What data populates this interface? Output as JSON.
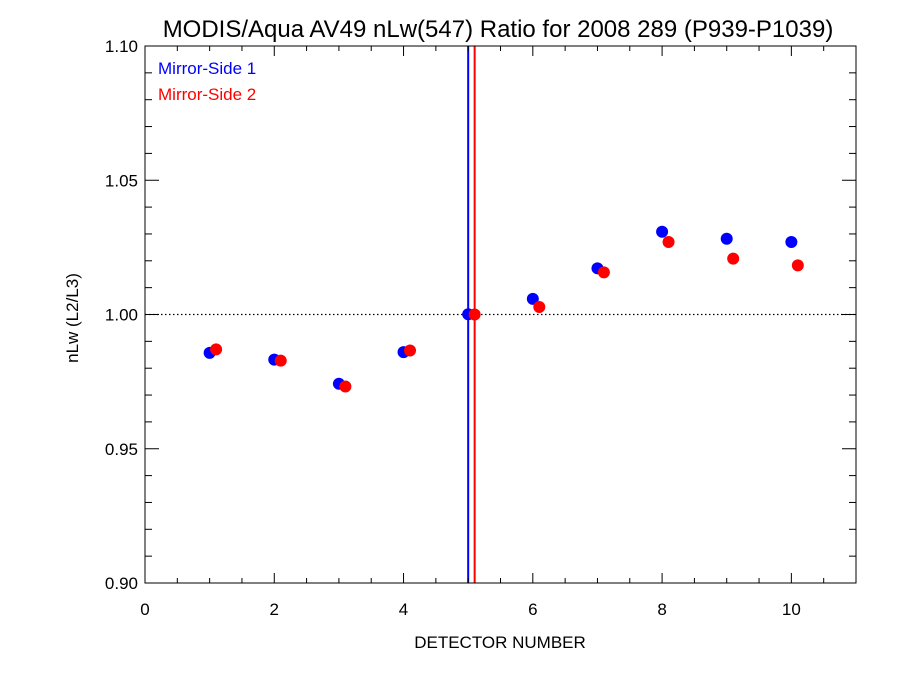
{
  "chart_data": {
    "type": "scatter",
    "title": "MODIS/Aqua AV49 nLw(547) Ratio for 2008 289 (P939-P1039)",
    "xlabel": "DETECTOR NUMBER",
    "ylabel": "nLw (L2/L3)",
    "xlim": [
      0,
      11
    ],
    "ylim": [
      0.9,
      1.1
    ],
    "x_ticks": [
      0,
      2,
      4,
      6,
      8,
      10
    ],
    "y_ticks": [
      0.9,
      0.95,
      1.0,
      1.05,
      1.1
    ],
    "x_tick_labels": [
      "0",
      "2",
      "4",
      "6",
      "8",
      "10"
    ],
    "y_tick_labels": [
      "0.90",
      "0.95",
      "1.00",
      "1.05",
      "1.10"
    ],
    "reference_line_y": 1.0,
    "vertical_lines": [
      {
        "x": 5.0,
        "color": "#0000ff"
      },
      {
        "x": 5.1,
        "color": "#ff0000"
      }
    ],
    "series": [
      {
        "name": "Mirror-Side 1",
        "color": "#0000ff",
        "x": [
          1,
          2,
          3,
          4,
          5,
          6,
          7,
          8,
          9,
          10
        ],
        "y": [
          0.9857,
          0.9832,
          0.9742,
          0.986,
          1.0001,
          1.0058,
          1.0172,
          1.0308,
          1.0282,
          1.027
        ]
      },
      {
        "name": "Mirror-Side 2",
        "color": "#ff0000",
        "x": [
          1.1,
          2.1,
          3.1,
          4.1,
          5.1,
          6.1,
          7.1,
          8.1,
          9.1,
          10.1
        ],
        "y": [
          0.987,
          0.9828,
          0.9732,
          0.9866,
          1.0,
          1.0028,
          1.0157,
          1.027,
          1.0208,
          1.0183
        ]
      }
    ],
    "legend_position": "top-left"
  }
}
